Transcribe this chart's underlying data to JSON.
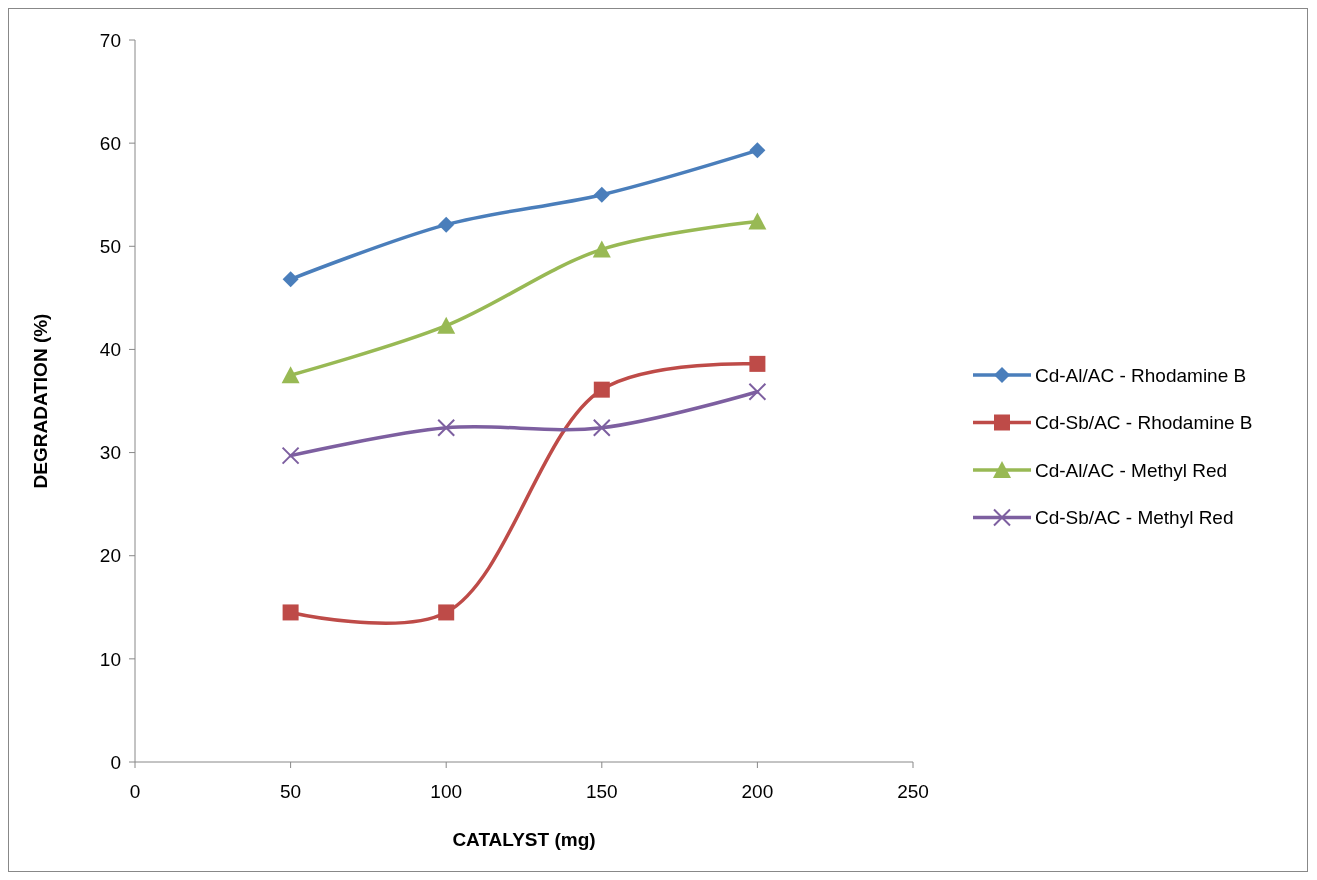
{
  "chart_data": {
    "type": "line",
    "xlabel": "CATALYST (mg)",
    "ylabel": "DEGRADATION (%)",
    "x": [
      50,
      100,
      150,
      200
    ],
    "xlim": [
      0,
      250
    ],
    "xticks": [
      0,
      50,
      100,
      150,
      200,
      250
    ],
    "ylim": [
      0,
      70
    ],
    "yticks": [
      0,
      10,
      20,
      30,
      40,
      50,
      60,
      70
    ],
    "grid": false,
    "legend": "right",
    "line_style": "solid",
    "series": [
      {
        "name": "Cd-Al/AC - Rhodamine B",
        "color": "#4a7ebb",
        "marker": "diamond",
        "values": [
          46.8,
          52.1,
          55.0,
          59.3
        ]
      },
      {
        "name": "Cd-Sb/AC - Rhodamine B",
        "color": "#be4b48",
        "marker": "square",
        "values": [
          14.5,
          14.5,
          36.1,
          38.6
        ]
      },
      {
        "name": "Cd-Al/AC - Methyl Red",
        "color": "#98b954",
        "marker": "triangle",
        "values": [
          37.5,
          42.3,
          49.7,
          52.4
        ]
      },
      {
        "name": "Cd-Sb/AC - Methyl Red",
        "color": "#7d5fa0",
        "marker": "cross",
        "values": [
          29.7,
          32.4,
          32.4,
          35.9
        ]
      }
    ]
  }
}
